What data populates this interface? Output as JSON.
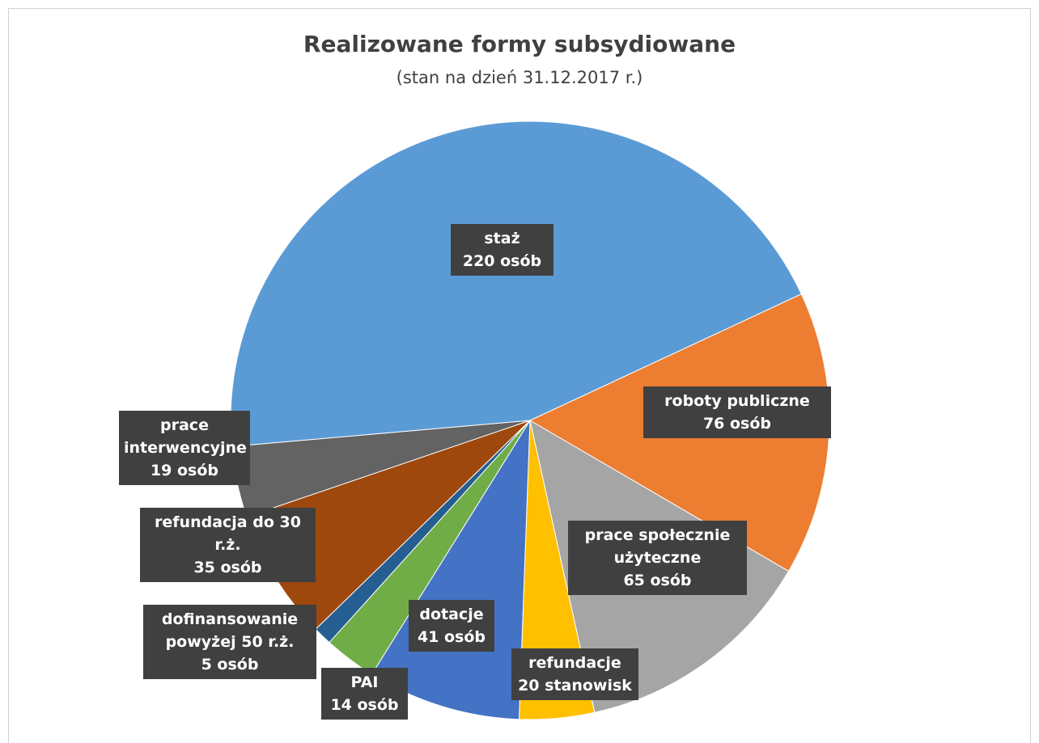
{
  "chart_data": {
    "type": "pie",
    "title": "Realizowane formy subsydiowane",
    "subtitle": "(stan na dzień 31.12.2017 r.)",
    "categories": [
      "roboty publiczne",
      "prace społecznie użyteczne",
      "refundacje",
      "dotacje",
      "PAI",
      "dofinansowanie powyżej 50 r.ż.",
      "refundacja do 30 r.ż.",
      "prace interwencyjne",
      "staż"
    ],
    "values": [
      76,
      65,
      20,
      41,
      14,
      5,
      35,
      19,
      220
    ],
    "value_labels": [
      "76 osób",
      "65 osób",
      "20 stanowisk",
      "41 osób",
      "14 osób",
      "5 osób",
      "35 osób",
      "19 osób",
      "220 osób"
    ],
    "colors": [
      "#ed7d31",
      "#a5a5a5",
      "#ffc000",
      "#4472c4",
      "#70ad47",
      "#255e91",
      "#9e480e",
      "#636363",
      "#5b9bd5"
    ]
  }
}
